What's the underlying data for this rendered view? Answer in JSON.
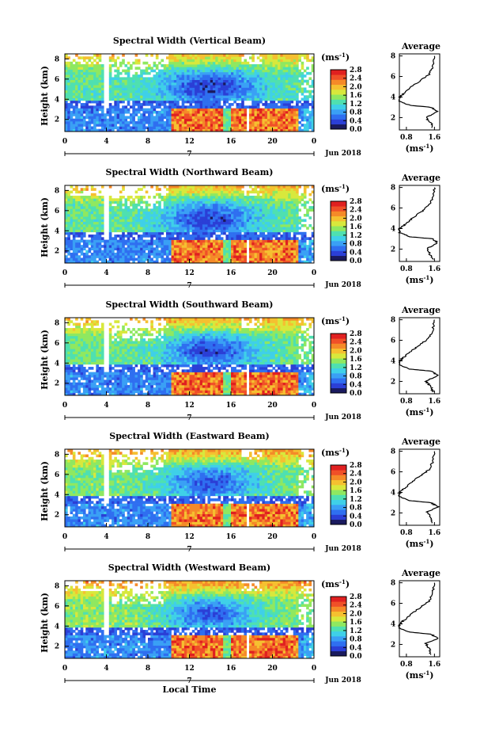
{
  "chart_data": [
    {
      "type": "heatmap",
      "title": "Spectral Width (Vertical Beam)",
      "ylabel": "Height (km)",
      "x_ticks": [
        "0",
        "4",
        "8",
        "12",
        "16",
        "20",
        "0"
      ],
      "x_date": "7",
      "x_month": "Jun 2018",
      "y_ticks": [
        "2",
        "4",
        "6",
        "8"
      ],
      "colorbar": {
        "unit_base": "(ms",
        "unit_exp": "-1",
        "unit_close": ")",
        "ticks": [
          "0.0",
          "0.4",
          "0.8",
          "1.2",
          "1.6",
          "2.0",
          "2.4",
          "2.8"
        ]
      },
      "profile": {
        "title": "Average",
        "x_ticks": [
          "0.8",
          "1.6"
        ],
        "y_ticks": [
          "2",
          "4",
          "6",
          "8"
        ],
        "xlabel_base": "(ms",
        "xlabel_exp": "-1",
        "xlabel_close": ")",
        "points": [
          [
            1.55,
            1.0
          ],
          [
            1.5,
            1.5
          ],
          [
            1.35,
            2.0
          ],
          [
            1.7,
            2.6
          ],
          [
            1.5,
            3.0
          ],
          [
            0.9,
            3.2
          ],
          [
            0.6,
            3.6
          ],
          [
            0.6,
            4.0
          ],
          [
            0.75,
            4.4
          ],
          [
            0.95,
            5.0
          ],
          [
            1.2,
            5.6
          ],
          [
            1.45,
            6.2
          ],
          [
            1.55,
            7.0
          ],
          [
            1.6,
            8.0
          ]
        ]
      }
    },
    {
      "type": "heatmap",
      "title": "Spectral Width (Northward Beam)",
      "ylabel": "Height (km)",
      "x_ticks": [
        "0",
        "4",
        "8",
        "12",
        "16",
        "20",
        "0"
      ],
      "x_date": "7",
      "x_month": "Jun 2018",
      "y_ticks": [
        "2",
        "4",
        "6",
        "8"
      ],
      "colorbar": {
        "unit_base": "(ms",
        "unit_exp": "-1",
        "unit_close": ")",
        "ticks": [
          "0.0",
          "0.4",
          "0.8",
          "1.2",
          "1.6",
          "2.0",
          "2.4",
          "2.8"
        ]
      },
      "profile": {
        "title": "Average",
        "x_ticks": [
          "0.8",
          "1.6"
        ],
        "y_ticks": [
          "2",
          "4",
          "6",
          "8"
        ],
        "xlabel_base": "(ms",
        "xlabel_exp": "-1",
        "xlabel_close": ")",
        "points": [
          [
            1.55,
            1.0
          ],
          [
            1.45,
            1.6
          ],
          [
            1.4,
            2.1
          ],
          [
            1.7,
            2.6
          ],
          [
            1.55,
            3.0
          ],
          [
            0.9,
            3.2
          ],
          [
            0.6,
            3.6
          ],
          [
            0.6,
            4.0
          ],
          [
            0.8,
            4.5
          ],
          [
            1.0,
            5.1
          ],
          [
            1.25,
            5.7
          ],
          [
            1.45,
            6.3
          ],
          [
            1.55,
            7.0
          ],
          [
            1.6,
            8.0
          ]
        ]
      }
    },
    {
      "type": "heatmap",
      "title": "Spectral Width (Southward Beam)",
      "ylabel": "Height (km)",
      "x_ticks": [
        "0",
        "4",
        "8",
        "12",
        "16",
        "20",
        "0"
      ],
      "x_date": "7",
      "x_month": "Jun 2018",
      "y_ticks": [
        "2",
        "4",
        "6",
        "8"
      ],
      "colorbar": {
        "unit_base": "(ms",
        "unit_exp": "-1",
        "unit_close": ")",
        "ticks": [
          "0.0",
          "0.4",
          "0.8",
          "1.2",
          "1.6",
          "2.0",
          "2.4",
          "2.8"
        ]
      },
      "profile": {
        "title": "Average",
        "x_ticks": [
          "0.8",
          "1.6"
        ],
        "y_ticks": [
          "2",
          "4",
          "6",
          "8"
        ],
        "xlabel_base": "(ms",
        "xlabel_exp": "-1",
        "xlabel_close": ")",
        "points": [
          [
            1.55,
            1.0
          ],
          [
            1.5,
            1.5
          ],
          [
            1.35,
            2.0
          ],
          [
            1.7,
            2.6
          ],
          [
            1.5,
            3.0
          ],
          [
            0.9,
            3.2
          ],
          [
            0.6,
            3.6
          ],
          [
            0.6,
            4.0
          ],
          [
            0.75,
            4.4
          ],
          [
            0.95,
            5.0
          ],
          [
            1.2,
            5.6
          ],
          [
            1.45,
            6.2
          ],
          [
            1.55,
            7.0
          ],
          [
            1.6,
            8.0
          ]
        ]
      }
    },
    {
      "type": "heatmap",
      "title": "Spectral Width (Eastward Beam)",
      "ylabel": "Height (km)",
      "x_ticks": [
        "0",
        "4",
        "8",
        "12",
        "16",
        "20",
        "0"
      ],
      "x_date": "7",
      "x_month": "Jun 2018",
      "y_ticks": [
        "2",
        "4",
        "6",
        "8"
      ],
      "colorbar": {
        "unit_base": "(ms",
        "unit_exp": "-1",
        "unit_close": ")",
        "ticks": [
          "0.0",
          "0.4",
          "0.8",
          "1.2",
          "1.6",
          "2.0",
          "2.4",
          "2.8"
        ]
      },
      "profile": {
        "title": "Average",
        "x_ticks": [
          "0.8",
          "1.6"
        ],
        "y_ticks": [
          "2",
          "4",
          "6",
          "8"
        ],
        "xlabel_base": "(ms",
        "xlabel_exp": "-1",
        "xlabel_close": ")",
        "points": [
          [
            1.55,
            1.0
          ],
          [
            1.5,
            1.6
          ],
          [
            1.4,
            2.1
          ],
          [
            1.7,
            2.6
          ],
          [
            1.5,
            3.0
          ],
          [
            0.9,
            3.2
          ],
          [
            0.6,
            3.6
          ],
          [
            0.6,
            4.0
          ],
          [
            0.75,
            4.4
          ],
          [
            0.95,
            5.0
          ],
          [
            1.2,
            5.6
          ],
          [
            1.45,
            6.2
          ],
          [
            1.55,
            7.0
          ],
          [
            1.6,
            8.0
          ]
        ]
      }
    },
    {
      "type": "heatmap",
      "title": "Spectral Width (Westward Beam)",
      "ylabel": "Height (km)",
      "x_ticks": [
        "0",
        "4",
        "8",
        "12",
        "16",
        "20",
        "0"
      ],
      "x_date": "7",
      "x_month": "Jun 2018",
      "xlabel": "Local Time",
      "y_ticks": [
        "2",
        "4",
        "6",
        "8"
      ],
      "colorbar": {
        "unit_base": "(ms",
        "unit_exp": "-1",
        "unit_close": ")",
        "ticks": [
          "0.0",
          "0.4",
          "0.8",
          "1.2",
          "1.6",
          "2.0",
          "2.4",
          "2.8"
        ]
      },
      "profile": {
        "title": "Average",
        "x_ticks": [
          "0.8",
          "1.6"
        ],
        "y_ticks": [
          "2",
          "4",
          "6",
          "8"
        ],
        "xlabel_base": "(ms",
        "xlabel_exp": "-1",
        "xlabel_close": ")",
        "points": [
          [
            1.5,
            1.0
          ],
          [
            1.45,
            1.6
          ],
          [
            1.35,
            2.1
          ],
          [
            1.7,
            2.6
          ],
          [
            1.5,
            3.0
          ],
          [
            0.9,
            3.2
          ],
          [
            0.6,
            3.6
          ],
          [
            0.6,
            4.0
          ],
          [
            0.75,
            4.4
          ],
          [
            0.95,
            5.0
          ],
          [
            1.2,
            5.6
          ],
          [
            1.45,
            6.2
          ],
          [
            1.55,
            7.0
          ],
          [
            1.6,
            8.0
          ]
        ]
      }
    }
  ],
  "colorscale": [
    "#1a1a5e",
    "#2b3fd6",
    "#2f6ff0",
    "#3aa0f5",
    "#3fd0e8",
    "#4fe0b0",
    "#8fe860",
    "#d8e83c",
    "#f5c030",
    "#f58a28",
    "#f05028",
    "#e02020"
  ]
}
